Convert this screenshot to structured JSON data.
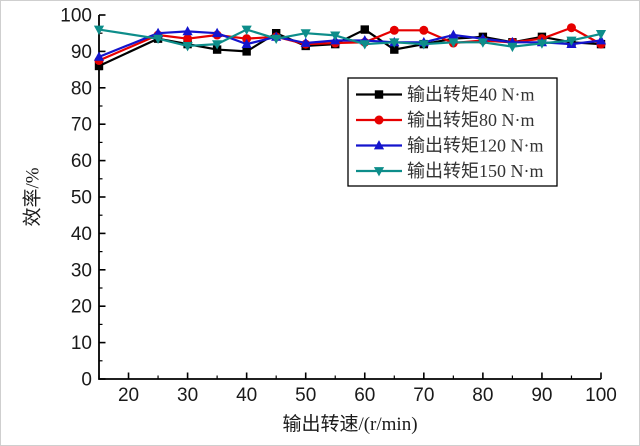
{
  "chart_data": {
    "type": "line",
    "title": "",
    "xlabel": "输出转速/(r/min)",
    "ylabel": "效率/%",
    "xlim": [
      15,
      100
    ],
    "ylim": [
      0,
      100
    ],
    "x_ticks": [
      20,
      30,
      40,
      50,
      60,
      70,
      80,
      90,
      100
    ],
    "y_ticks": [
      0,
      10,
      20,
      30,
      40,
      50,
      60,
      70,
      80,
      90,
      100
    ],
    "minor_tick_step": 5,
    "grid": false,
    "legend_position": "upper-right-inside",
    "x": [
      15,
      25,
      30,
      35,
      40,
      45,
      50,
      55,
      60,
      65,
      70,
      75,
      80,
      85,
      90,
      95,
      100
    ],
    "series": [
      {
        "name": "输出转矩40 N·m",
        "color": "#000000",
        "marker": "square",
        "values": [
          86,
          93.5,
          92,
          90.5,
          90,
          95,
          91.5,
          92,
          96,
          90.5,
          92,
          93.5,
          94,
          92.5,
          94,
          92.5,
          92
        ]
      },
      {
        "name": "输出转矩80 N·m",
        "color": "#e60000",
        "marker": "circle",
        "values": [
          87.5,
          94.5,
          93.5,
          94.5,
          93.5,
          94,
          92,
          92.3,
          92.5,
          95.8,
          95.8,
          92.3,
          93,
          92.5,
          93.5,
          96.5,
          92
        ]
      },
      {
        "name": "输出转矩120 N·m",
        "color": "#1414cd",
        "marker": "triangle-up",
        "values": [
          88.5,
          95,
          95.5,
          95,
          92,
          94,
          92.3,
          93,
          93,
          92.5,
          92.5,
          94.5,
          93.5,
          92.5,
          92.5,
          92,
          93
        ]
      },
      {
        "name": "输出转矩150 N·m",
        "color": "#0d8d8a",
        "marker": "triangle-down",
        "values": [
          96,
          93.5,
          91.5,
          92,
          96,
          93.5,
          95,
          94.4,
          92,
          92.5,
          92,
          92.5,
          92.5,
          91.3,
          92.2,
          93,
          94.8
        ]
      }
    ],
    "axis_color": "#000000",
    "tick_label_color": "#1a1a1a",
    "legend_text_color": "#333333"
  }
}
